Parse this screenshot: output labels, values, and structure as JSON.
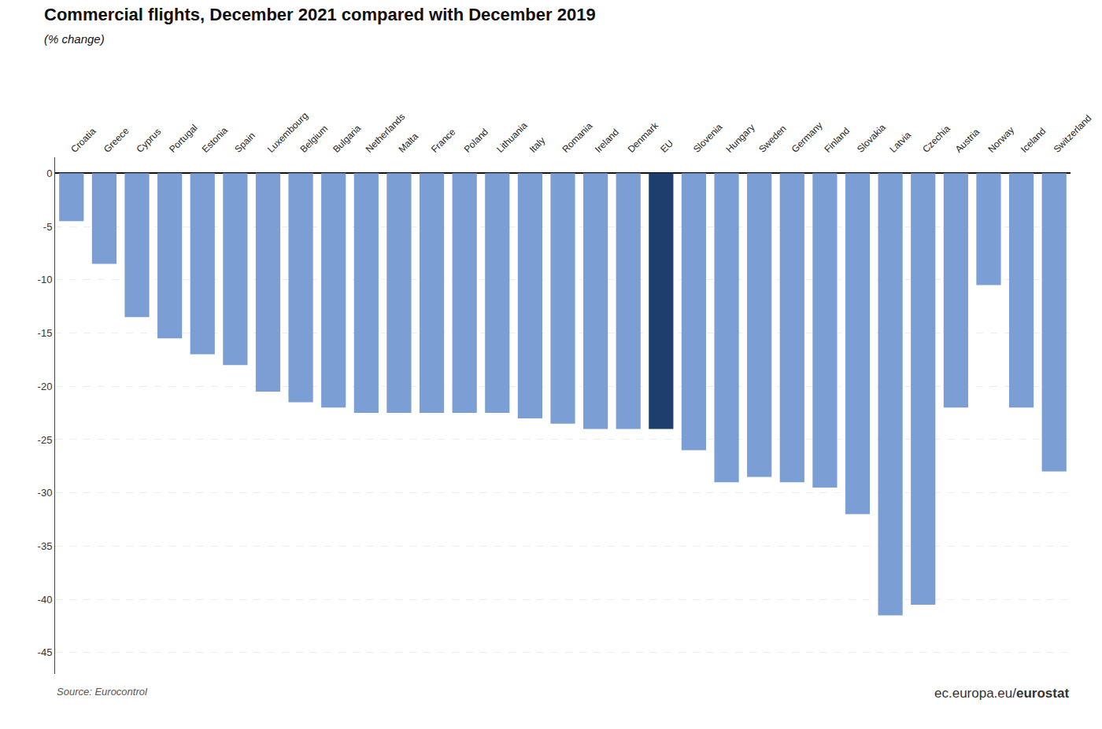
{
  "chart_data": {
    "type": "bar",
    "title": "Commercial flights, December 2021 compared with December 2019",
    "subtitle": "(% change)",
    "categories": [
      "Croatia",
      "Greece",
      "Cyprus",
      "Portugal",
      "Estonia",
      "Spain",
      "Luxembourg",
      "Belgium",
      "Bulgaria",
      "Netherlands",
      "Malta",
      "France",
      "Poland",
      "Lithuania",
      "Italy",
      "Romania",
      "Ireland",
      "Denmark",
      "EU",
      "Slovenia",
      "Hungary",
      "Sweden",
      "Germany",
      "Finland",
      "Slovakia",
      "Latvia",
      "Czechia",
      "Austria",
      "Norway",
      "Iceland",
      "Switzerland"
    ],
    "values": [
      -4.5,
      -8.5,
      -13.5,
      -15.5,
      -17.0,
      -18.0,
      -20.5,
      -21.5,
      -22.0,
      -22.5,
      -22.5,
      -22.5,
      -22.5,
      -22.5,
      -23.0,
      -23.5,
      -24.0,
      -24.0,
      -24.0,
      -26.0,
      -29.0,
      -28.5,
      -29.0,
      -29.5,
      -32.0,
      -41.5,
      -40.5,
      -22.0,
      -10.5,
      -22.0,
      -28.0
    ],
    "colors": [
      "#7b9fd4",
      "#7b9fd4",
      "#7b9fd4",
      "#7b9fd4",
      "#7b9fd4",
      "#7b9fd4",
      "#7b9fd4",
      "#7b9fd4",
      "#7b9fd4",
      "#7b9fd4",
      "#7b9fd4",
      "#7b9fd4",
      "#7b9fd4",
      "#7b9fd4",
      "#7b9fd4",
      "#7b9fd4",
      "#7b9fd4",
      "#7b9fd4",
      "#1e3f6e",
      "#7b9fd4",
      "#7b9fd4",
      "#7b9fd4",
      "#7b9fd4",
      "#7b9fd4",
      "#7b9fd4",
      "#7b9fd4",
      "#7b9fd4",
      "#7b9fd4",
      "#7b9fd4",
      "#7b9fd4",
      "#7b9fd4"
    ],
    "ylim": [
      -47,
      1.5
    ],
    "yticks": [
      0,
      -5,
      -10,
      -15,
      -20,
      -25,
      -30,
      -35,
      -40,
      -45
    ],
    "grid": true,
    "source": "Source: Eurocontrol",
    "annotations": [
      "ec.europa.eu/",
      "eurostat"
    ]
  }
}
